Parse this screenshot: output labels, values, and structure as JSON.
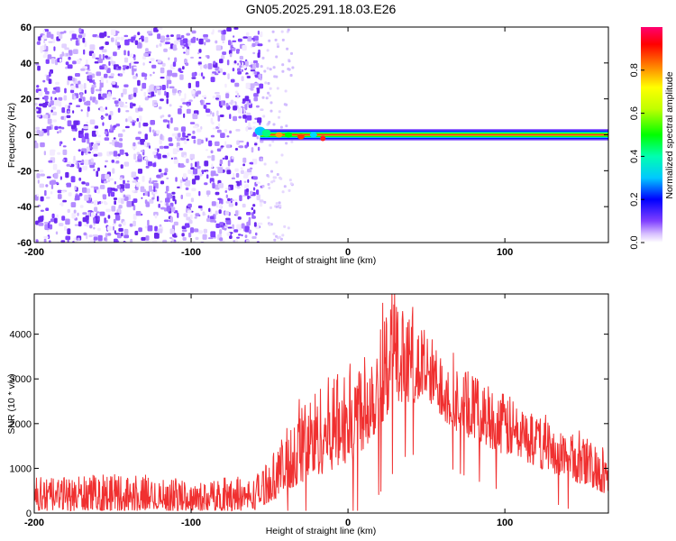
{
  "title": "GN05.2025.291.18.03.E26",
  "chart_data": [
    {
      "type": "heatmap",
      "xlabel": "Height of straight line (km)",
      "ylabel": "Frequency (Hz)",
      "xlim": [
        -200,
        166
      ],
      "ylim": [
        -60,
        60
      ],
      "x_ticks": [
        "-200",
        "-100",
        "0",
        "100"
      ],
      "y_ticks": [
        "-60",
        "-40",
        "-20",
        "0",
        "20",
        "40",
        "60"
      ],
      "colorbar": {
        "label": "Normalized spectral amplitude",
        "range": [
          0,
          1
        ],
        "ticks": [
          "0.0",
          "0.2",
          "0.4",
          "0.6",
          "0.8"
        ]
      },
      "regions": [
        {
          "x_range": [
            -200,
            -56
          ],
          "description_value": "broadband noise, amplitude approx 0.05-0.25 across all frequencies"
        },
        {
          "x_range": [
            -56,
            166
          ],
          "center_frequency": 0,
          "bandwidth_hz": 4,
          "peak_amplitude": 1.0
        }
      ]
    },
    {
      "type": "line",
      "xlabel": "Height of straight line (km)",
      "ylabel": "SNR (10 * v/v)",
      "xlim": [
        -200,
        166
      ],
      "ylim": [
        0,
        4900
      ],
      "x_ticks": [
        "-200",
        "-100",
        "0",
        "100"
      ],
      "y_ticks": [
        "0",
        "1000",
        "2000",
        "3000",
        "4000"
      ],
      "color": "#f03030",
      "envelope": [
        {
          "x": -200,
          "lo": 50,
          "hi": 750
        },
        {
          "x": -150,
          "lo": 50,
          "hi": 900
        },
        {
          "x": -100,
          "lo": 50,
          "hi": 700
        },
        {
          "x": -60,
          "lo": 50,
          "hi": 800
        },
        {
          "x": -45,
          "lo": 350,
          "hi": 1500
        },
        {
          "x": -30,
          "lo": 600,
          "hi": 2500
        },
        {
          "x": -15,
          "lo": 900,
          "hi": 3000
        },
        {
          "x": 0,
          "lo": 1100,
          "hi": 3300
        },
        {
          "x": 15,
          "lo": 1600,
          "hi": 4000
        },
        {
          "x": 27,
          "lo": 2300,
          "hi": 4800
        },
        {
          "x": 35,
          "lo": 2500,
          "hi": 4600
        },
        {
          "x": 50,
          "lo": 2400,
          "hi": 4100
        },
        {
          "x": 70,
          "lo": 1800,
          "hi": 3300
        },
        {
          "x": 100,
          "lo": 1300,
          "hi": 2700
        },
        {
          "x": 130,
          "lo": 900,
          "hi": 2000
        },
        {
          "x": 166,
          "lo": 400,
          "hi": 1500
        }
      ]
    }
  ]
}
